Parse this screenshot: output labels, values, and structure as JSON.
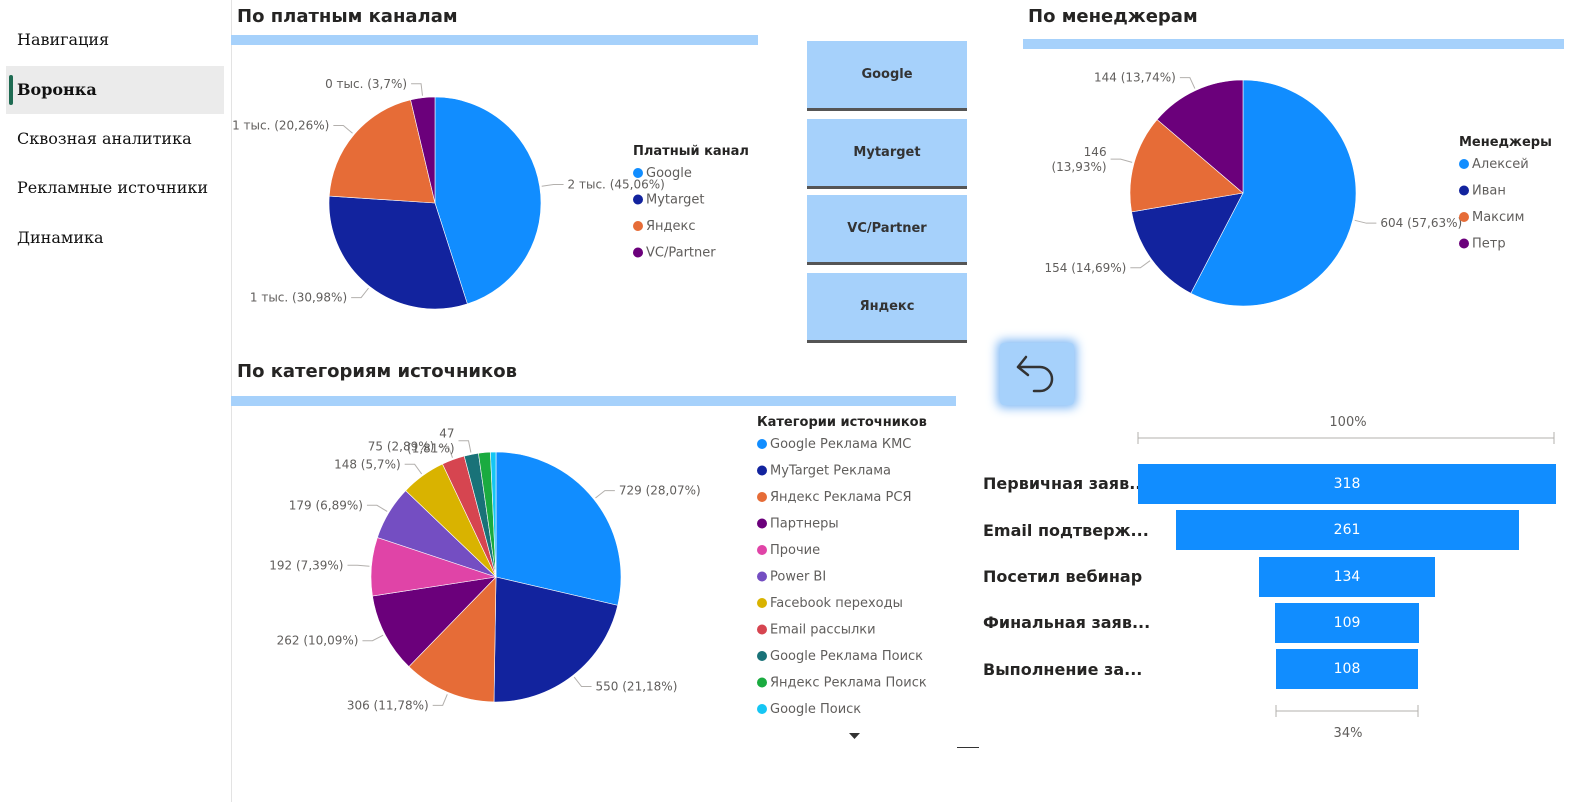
{
  "nav": {
    "items": [
      {
        "label": "Навигация",
        "active": false
      },
      {
        "label": "Воронка",
        "active": true
      },
      {
        "label": "Сквозная аналитика",
        "active": false
      },
      {
        "label": "Рекламные источники",
        "active": false
      },
      {
        "label": "Динамика",
        "active": false
      }
    ]
  },
  "colors": {
    "accent_bar": "#a6d1fb",
    "google": "#118dff",
    "mytarget": "#12239e",
    "yandex": "#e66c37",
    "partner": "#6b007b",
    "nav_marker": "#1e6b52"
  },
  "slicer": {
    "buttons": [
      "Google",
      "Mytarget",
      "VC/Partner",
      "Яндекс"
    ]
  },
  "back_button": {
    "icon": "undo-arrow-icon"
  },
  "charts": [
    {
      "type": "pie",
      "title": "По платным каналам",
      "legend_title": "Платный канал",
      "legend_position": "right",
      "slices": [
        {
          "name": "Google",
          "value_label": "2 тыс. (45,06%)",
          "percent": 45.06,
          "color": "#118dff"
        },
        {
          "name": "Mytarget",
          "value_label": "1 тыс. (30,98%)",
          "percent": 30.98,
          "color": "#12239e"
        },
        {
          "name": "Яндекс",
          "value_label": "1 тыс. (20,26%)",
          "percent": 20.26,
          "color": "#e66c37"
        },
        {
          "name": "VC/Partner",
          "value_label": "0 тыс. (3,7%)",
          "percent": 3.7,
          "color": "#6b007b"
        }
      ]
    },
    {
      "type": "pie",
      "title": "По менеджерам",
      "legend_title": "Менеджеры",
      "legend_position": "right",
      "slices": [
        {
          "name": "Алексей",
          "value": 604,
          "value_label": "604 (57,63%)",
          "percent": 57.63,
          "color": "#118dff"
        },
        {
          "name": "Иван",
          "value": 154,
          "value_label": "154 (14,69%)",
          "percent": 14.69,
          "color": "#12239e"
        },
        {
          "name": "Максим",
          "value": 146,
          "value_label_lines": [
            "146",
            "(13,93%)"
          ],
          "percent": 13.93,
          "color": "#e66c37"
        },
        {
          "name": "Петр",
          "value": 144,
          "value_label": "144 (13,74%)",
          "percent": 13.74,
          "color": "#6b007b"
        }
      ]
    },
    {
      "type": "pie",
      "title": "По категориям источников",
      "legend_title": "Категории источников",
      "legend_position": "right",
      "slices": [
        {
          "name": "Google Реклама КМС",
          "value": 729,
          "value_label": "729 (28,07%)",
          "percent": 28.07,
          "color": "#118dff"
        },
        {
          "name": "MyTarget Реклама",
          "value": 550,
          "value_label": "550 (21,18%)",
          "percent": 21.18,
          "color": "#12239e"
        },
        {
          "name": "Яндекс Реклама РСЯ",
          "value": 306,
          "value_label": "306 (11,78%)",
          "percent": 11.78,
          "color": "#e66c37"
        },
        {
          "name": "Партнеры",
          "value": 262,
          "value_label": "262 (10,09%)",
          "percent": 10.09,
          "color": "#6b007b"
        },
        {
          "name": "Прочие",
          "value": 192,
          "value_label": "192 (7,39%)",
          "percent": 7.39,
          "color": "#e044a7"
        },
        {
          "name": "Power BI",
          "value": 179,
          "value_label": "179 (6,89%)",
          "percent": 6.89,
          "color": "#744ec2"
        },
        {
          "name": "Facebook переходы",
          "value": 148,
          "value_label": "148 (5,7%)",
          "percent": 5.7,
          "color": "#d9b300"
        },
        {
          "name": "Email рассылки",
          "value": 75,
          "value_label": "75 (2,89%)",
          "percent": 2.89,
          "color": "#d64550"
        },
        {
          "name": "Google Реклама Поиск",
          "value": 47,
          "value_label_lines": [
            "47",
            "(1,81%)"
          ],
          "percent": 1.81,
          "color": "#197278"
        },
        {
          "name": "Яндекс Реклама Поиск",
          "percent": 1.5,
          "color": "#1aab40"
        },
        {
          "name": "Google Поиск",
          "percent": 0.7,
          "color": "#15c6f4"
        }
      ]
    }
  ],
  "funnel": {
    "top_label": "100%",
    "bottom_label": "34%",
    "stages": [
      {
        "label": "Первичная заяв...",
        "value": 318
      },
      {
        "label": "Email подтверж...",
        "value": 261
      },
      {
        "label": "Посетил вебинар",
        "value": 134
      },
      {
        "label": "Финальная заяв...",
        "value": 109
      },
      {
        "label": "Выполнение за...",
        "value": 108
      }
    ]
  }
}
